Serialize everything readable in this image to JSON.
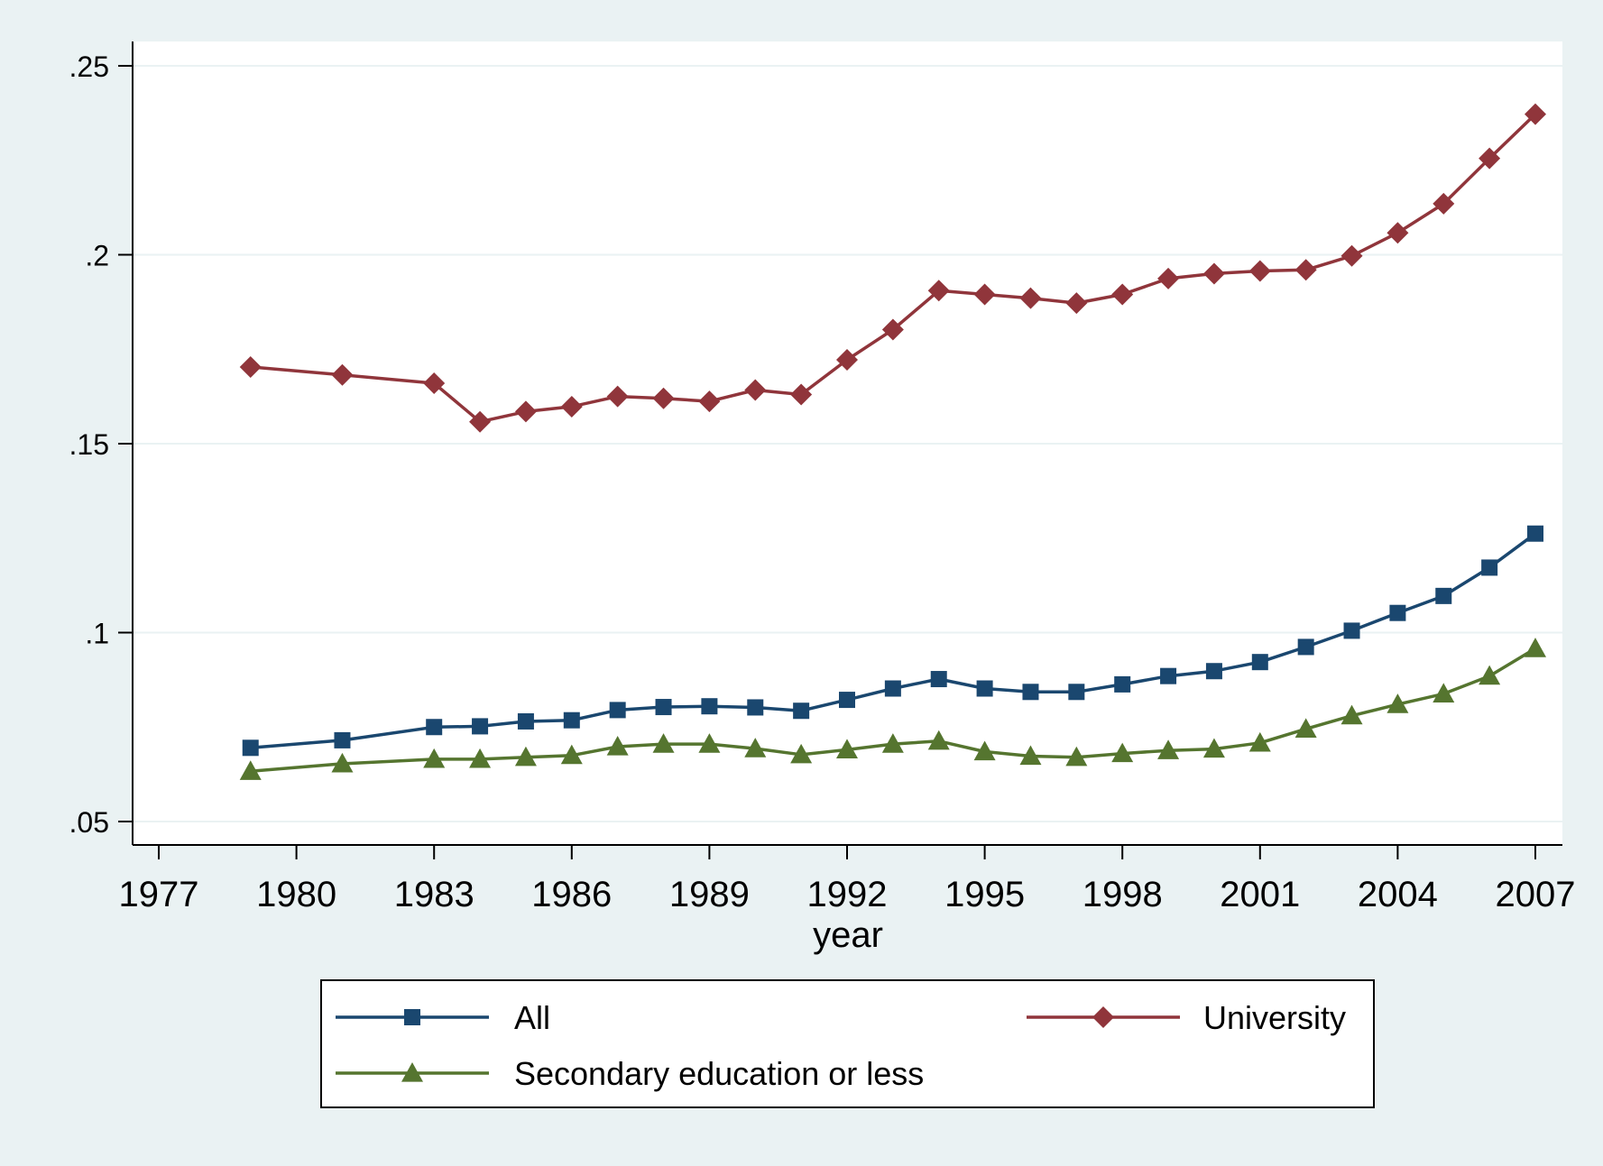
{
  "chart_data": {
    "type": "line",
    "title": "",
    "xlabel": "year",
    "ylabel": "",
    "xlim": [
      1977,
      2007
    ],
    "ylim": [
      0.05,
      0.25
    ],
    "x_ticks": [
      1977,
      1980,
      1983,
      1986,
      1989,
      1992,
      1995,
      1998,
      2001,
      2004,
      2007
    ],
    "x_tick_labels": [
      "1977",
      "1980",
      "1983",
      "1986",
      "1989",
      "1992",
      "1995",
      "1998",
      "2001",
      "2004",
      "2007"
    ],
    "y_ticks": [
      0.05,
      0.1,
      0.15,
      0.2,
      0.25
    ],
    "y_tick_labels": [
      ".05",
      ".1",
      ".15",
      ".2",
      ".25"
    ],
    "grid": "horizontal",
    "legend_position": "bottom",
    "x": [
      1979,
      1981,
      1983,
      1984,
      1985,
      1986,
      1987,
      1988,
      1989,
      1990,
      1991,
      1992,
      1993,
      1994,
      1995,
      1996,
      1997,
      1998,
      1999,
      2000,
      2001,
      2002,
      2003,
      2004,
      2005,
      2006,
      2007
    ],
    "series": [
      {
        "name": "All",
        "color": "#1a476f",
        "marker": "square",
        "values": [
          0.0695,
          0.0715,
          0.075,
          0.0752,
          0.0765,
          0.0768,
          0.0795,
          0.0803,
          0.0805,
          0.0802,
          0.0793,
          0.0822,
          0.0852,
          0.0877,
          0.0852,
          0.0843,
          0.0843,
          0.0863,
          0.0885,
          0.0898,
          0.0922,
          0.0962,
          0.1005,
          0.1052,
          0.1097,
          0.1172,
          0.1262
        ]
      },
      {
        "name": "University",
        "color": "#90353b",
        "marker": "diamond",
        "values": [
          0.1703,
          0.1682,
          0.166,
          0.1558,
          0.1585,
          0.1598,
          0.1625,
          0.162,
          0.1612,
          0.1642,
          0.163,
          0.1722,
          0.1802,
          0.1905,
          0.1895,
          0.1885,
          0.1872,
          0.1895,
          0.1937,
          0.195,
          0.1957,
          0.196,
          0.1997,
          0.2058,
          0.2135,
          0.2255,
          0.2372
        ]
      },
      {
        "name": "Secondary education or less",
        "color": "#55752f",
        "marker": "triangle",
        "values": [
          0.0633,
          0.0653,
          0.0665,
          0.0665,
          0.067,
          0.0675,
          0.0698,
          0.0705,
          0.0705,
          0.0693,
          0.0677,
          0.069,
          0.0705,
          0.0713,
          0.0685,
          0.0673,
          0.067,
          0.068,
          0.0688,
          0.0692,
          0.0708,
          0.0745,
          0.078,
          0.081,
          0.0838,
          0.0885,
          0.0958
        ]
      }
    ]
  }
}
